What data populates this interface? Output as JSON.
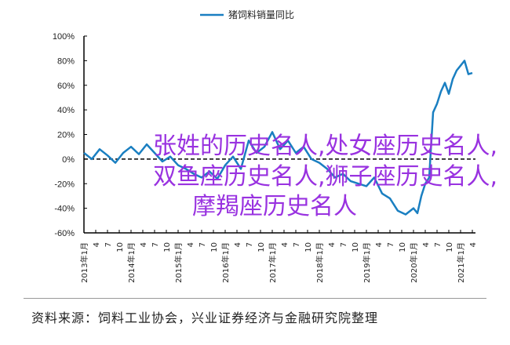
{
  "chart_data": {
    "type": "line",
    "title": "",
    "xlabel": "",
    "ylabel": "",
    "ylim": [
      -60,
      100
    ],
    "yticks": [
      "100%",
      "80%",
      "60%",
      "40%",
      "20%",
      "0%",
      "-20%",
      "-40%",
      "-60%"
    ],
    "ytick_values": [
      100,
      80,
      60,
      40,
      20,
      0,
      -20,
      -40,
      -60
    ],
    "xrange": [
      "2013-01",
      "2021-04"
    ],
    "xtick_labels": [
      "2013年1月",
      "4",
      "7",
      "10",
      "2014年1月",
      "4",
      "7",
      "10",
      "2015年1月",
      "4",
      "7",
      "10",
      "2016年1月",
      "4",
      "7",
      "10",
      "2017年1月",
      "4",
      "7",
      "10",
      "2018年1月",
      "4",
      "7",
      "10",
      "2019年1月",
      "4",
      "7",
      "10",
      "2020年1月",
      "4",
      "7",
      "10",
      "2021年1月",
      "4"
    ],
    "zero_line": "dashed",
    "grid": false,
    "legend_placement": "top",
    "series": [
      {
        "name": "猪饲料销量同比",
        "color": "#1a7fc1",
        "points": [
          [
            "2013-01",
            5
          ],
          [
            "2013-03",
            0
          ],
          [
            "2013-05",
            8
          ],
          [
            "2013-07",
            3
          ],
          [
            "2013-09",
            -3
          ],
          [
            "2013-11",
            5
          ],
          [
            "2014-01",
            10
          ],
          [
            "2014-03",
            4
          ],
          [
            "2014-05",
            12
          ],
          [
            "2014-07",
            5
          ],
          [
            "2014-09",
            -2
          ],
          [
            "2014-11",
            2
          ],
          [
            "2015-01",
            -5
          ],
          [
            "2015-03",
            -8
          ],
          [
            "2015-05",
            -12
          ],
          [
            "2015-07",
            -15
          ],
          [
            "2015-09",
            -10
          ],
          [
            "2015-11",
            -16
          ],
          [
            "2016-01",
            -5
          ],
          [
            "2016-03",
            2
          ],
          [
            "2016-05",
            -8
          ],
          [
            "2016-07",
            15
          ],
          [
            "2016-09",
            5
          ],
          [
            "2016-11",
            10
          ],
          [
            "2017-01",
            22
          ],
          [
            "2017-03",
            8
          ],
          [
            "2017-05",
            15
          ],
          [
            "2017-07",
            5
          ],
          [
            "2017-09",
            10
          ],
          [
            "2017-11",
            0
          ],
          [
            "2018-01",
            -3
          ],
          [
            "2018-03",
            -8
          ],
          [
            "2018-05",
            -15
          ],
          [
            "2018-07",
            -12
          ],
          [
            "2018-09",
            -18
          ],
          [
            "2018-11",
            -20
          ],
          [
            "2019-01",
            -22
          ],
          [
            "2019-03",
            -15
          ],
          [
            "2019-05",
            -28
          ],
          [
            "2019-07",
            -32
          ],
          [
            "2019-09",
            -42
          ],
          [
            "2019-11",
            -45
          ],
          [
            "2020-01",
            -40
          ],
          [
            "2020-02",
            -44
          ],
          [
            "2020-03",
            -30
          ],
          [
            "2020-04",
            -20
          ],
          [
            "2020-05",
            -15
          ],
          [
            "2020-06",
            38
          ],
          [
            "2020-07",
            45
          ],
          [
            "2020-08",
            55
          ],
          [
            "2020-09",
            62
          ],
          [
            "2020-10",
            53
          ],
          [
            "2020-11",
            65
          ],
          [
            "2020-12",
            72
          ],
          [
            "2021-01",
            76
          ],
          [
            "2021-02",
            80
          ],
          [
            "2021-03",
            69
          ],
          [
            "2021-04",
            70
          ]
        ]
      }
    ]
  },
  "overlay": {
    "line1": "张姓的历史名人,处女座历史名人,",
    "line2": "双鱼座历史名人,狮子座历史名人,",
    "line3": "摩羯座历史名人",
    "color": "#9932e0"
  },
  "source": "资料来源：饲料工业协会，兴业证券经济与金融研究院整理"
}
